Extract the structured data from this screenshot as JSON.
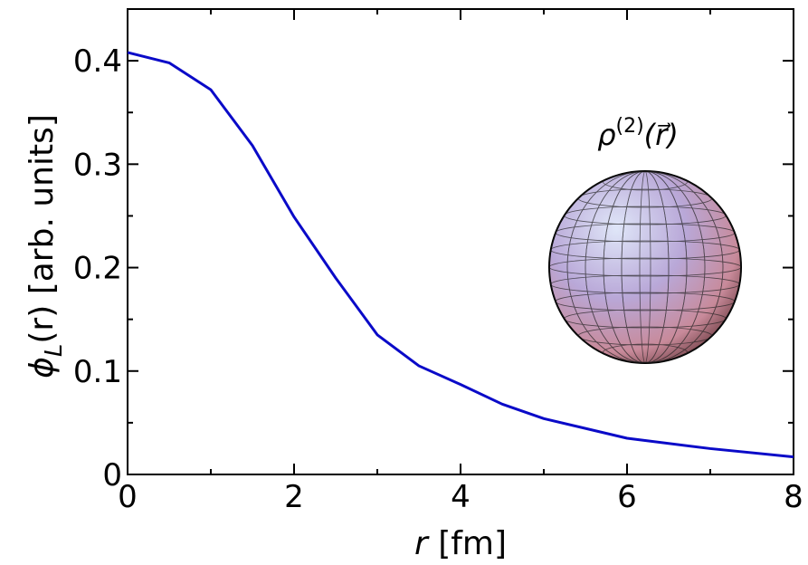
{
  "chart_data": {
    "type": "line",
    "xlabel_parts": [
      "r",
      " [fm]"
    ],
    "ylabel_parts": [
      "ϕ",
      "L",
      "(r) [arb. units]"
    ],
    "annotation_parts": [
      "ρ",
      "(2)",
      "(r⃗)"
    ],
    "x": [
      0,
      0.5,
      1,
      1.5,
      2,
      2.5,
      3,
      3.5,
      4,
      4.5,
      5,
      6,
      7,
      8
    ],
    "series": [
      {
        "color": "#0a0ac8",
        "values": [
          0.408,
          0.398,
          0.372,
          0.318,
          0.249,
          0.19,
          0.135,
          0.105,
          0.087,
          0.068,
          0.054,
          0.035,
          0.025,
          0.017
        ]
      }
    ],
    "xlim": [
      0,
      8
    ],
    "ylim": [
      0,
      0.45
    ],
    "xticks": [
      0,
      2,
      4,
      6,
      8
    ],
    "yticks": [
      0,
      0.1,
      0.2,
      0.3,
      0.4
    ],
    "xminor_ticks": [
      1,
      3,
      5,
      7
    ],
    "yminor_ticks": [
      0.05,
      0.15,
      0.25,
      0.35
    ],
    "grid": false
  }
}
